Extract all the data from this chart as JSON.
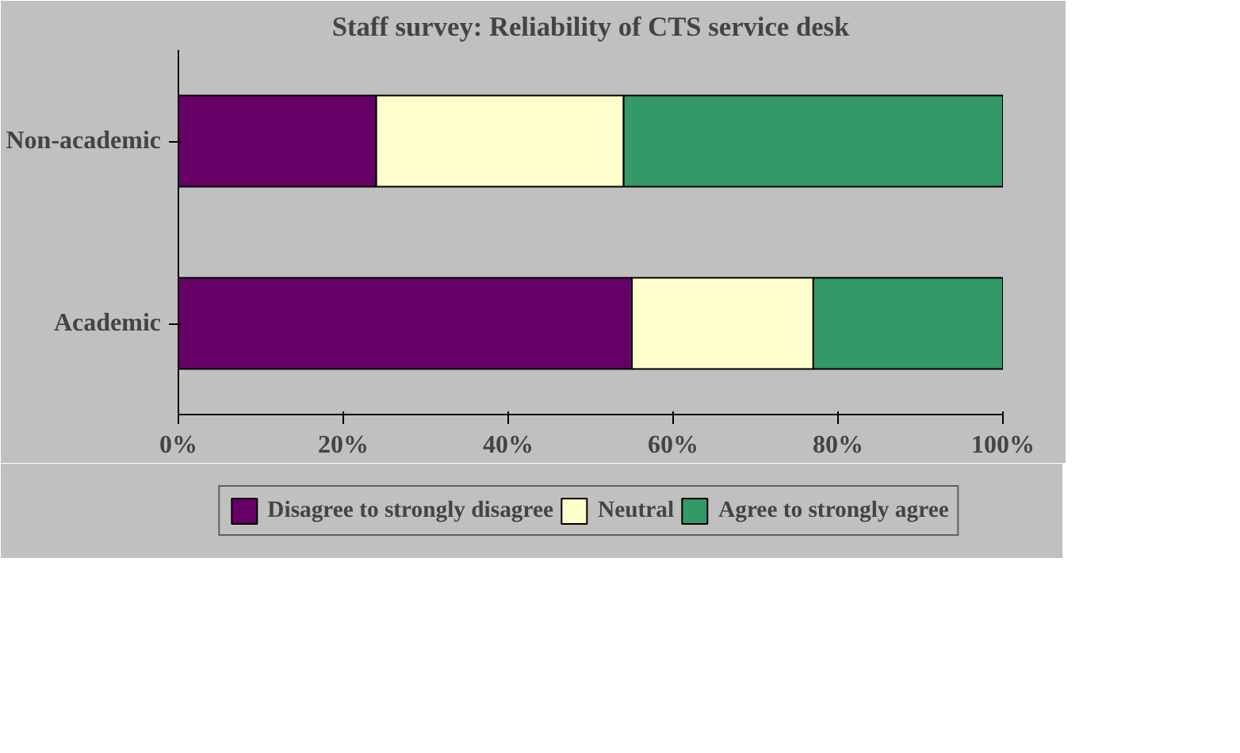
{
  "chart_data": {
    "type": "bar",
    "orientation": "horizontal",
    "stacked": true,
    "title": "Staff survey: Reliability of CTS service desk",
    "categories": [
      "Non-academic",
      "Academic"
    ],
    "series": [
      {
        "name": "Disagree to strongly disagree",
        "color": "#660066",
        "values": [
          24,
          55
        ]
      },
      {
        "name": "Neutral",
        "color": "#ffffcc",
        "values": [
          30,
          22
        ]
      },
      {
        "name": "Agree to strongly agree",
        "color": "#339966",
        "values": [
          46,
          23
        ]
      }
    ],
    "xlim": [
      0,
      100
    ],
    "xticks": [
      {
        "value": 0,
        "label": "0%"
      },
      {
        "value": 20,
        "label": "20%"
      },
      {
        "value": 40,
        "label": "40%"
      },
      {
        "value": 60,
        "label": "60%"
      },
      {
        "value": 80,
        "label": "80%"
      },
      {
        "value": 100,
        "label": "100%"
      }
    ],
    "grid": false,
    "legend": "bottom"
  }
}
